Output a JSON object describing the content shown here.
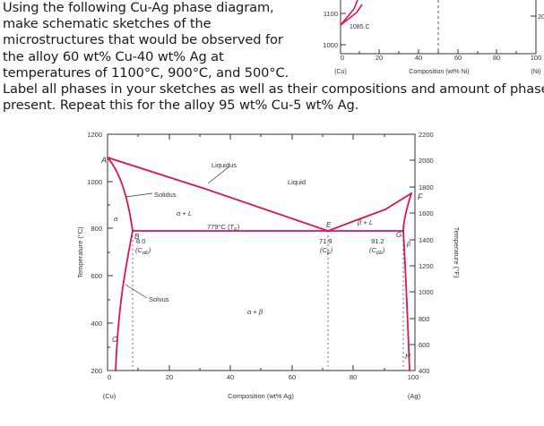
{
  "question": {
    "lines": [
      "Using the following Cu-Ag phase diagram,",
      "make schematic sketches of the",
      "microstructures that would be observed for",
      "the alloy 60 wt% Cu-40 wt% Ag at",
      "temperatures of 1100°C, 900°C, and 500°C.",
      "Label all phases in your sketches as well as their compositions and amount of phase",
      "present. Repeat this for the alloy 95 wt% Cu-5 wt% Ag."
    ]
  },
  "cu_ni_fragment": {
    "y_ticks": [
      "1100",
      "1000"
    ],
    "x_ticks": [
      "0",
      "20",
      "40",
      "60",
      "80",
      "100"
    ],
    "right_tick": "20",
    "label_1085": "1085.C",
    "left_end": "(Cu)",
    "right_end": "(Ni)",
    "xlabel": "Composition (wt% Ni)"
  },
  "phase_diagram": {
    "y_left_ticks": [
      "1200",
      "1000",
      "800",
      "600",
      "400",
      "200"
    ],
    "y_right_ticks": [
      "2200",
      "2000",
      "1800",
      "1600",
      "1400",
      "1200",
      "1000",
      "800",
      "600",
      "400"
    ],
    "x_ticks": [
      "0",
      "20",
      "40",
      "60",
      "80",
      "100"
    ],
    "left_end": "(Cu)",
    "right_end": "(Ag)",
    "xlabel": "Composition (wt% Ag)",
    "ylabel_left": "Temperature (°C)",
    "ylabel_right": "Temperature (°F)",
    "labels": {
      "A": "A",
      "F": "F",
      "B": "B",
      "G": "G",
      "E": "E",
      "C": "C",
      "H": "H",
      "liquidus": "Liquidus",
      "solidus": "Solidus",
      "solvus": "Solvus",
      "liquid": "Liquid",
      "alpha": "α",
      "beta": "β",
      "alpha_L": "α + L",
      "beta_L": "β + L",
      "alpha_beta": "α + β",
      "eutectic_temp": "779°C (T",
      "eutectic_temp_sub": "E",
      "eutectic_temp_close": ")",
      "b_comp": "8.0",
      "b_sym": "(C",
      "b_sub": "αE",
      "e_comp": "71.9",
      "e_sym": "(C",
      "e_sub": "E",
      "g_comp": "91.2",
      "g_sym": "(C",
      "g_sub": "βE",
      "close_paren": ")"
    },
    "colors": {
      "phase_lines": "#e0105a",
      "frame": "#333333"
    }
  }
}
